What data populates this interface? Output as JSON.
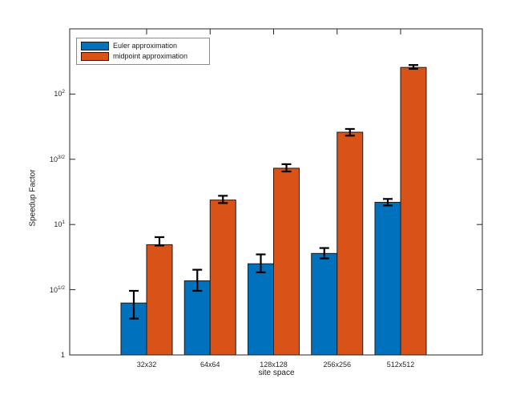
{
  "figure": {
    "background": "#ffffff",
    "axis_color": "#262626",
    "bar_edge_color": "#1a1a1a",
    "error_bar_color": "#000000",
    "legend_border_color": "#8c8c8c"
  },
  "legend": {
    "items": [
      {
        "label": "Euler approximation",
        "color": "#0072BD"
      },
      {
        "label": "midpoint approximation",
        "color": "#D95319"
      }
    ]
  },
  "chart_data": {
    "type": "bar",
    "title": "",
    "xlabel": "site space",
    "ylabel": "Speedup Factor",
    "yscale": "log",
    "ylim": [
      1,
      316.23
    ],
    "grid": false,
    "legend_position": "top-left",
    "categories": [
      "32x32",
      "64x64",
      "128x128",
      "256x256",
      "512x512"
    ],
    "yticks": [
      {
        "value": 1,
        "base": "1",
        "sup": ""
      },
      {
        "value": 3.1623,
        "base": "10",
        "sup": "1/2"
      },
      {
        "value": 10,
        "base": "10",
        "sup": "1"
      },
      {
        "value": 31.623,
        "base": "10",
        "sup": "3/2"
      },
      {
        "value": 100,
        "base": "10",
        "sup": "2"
      }
    ],
    "series": [
      {
        "name": "Euler approximation",
        "color": "#0072BD",
        "values": [
          2.5,
          3.7,
          5.0,
          6.0,
          14.8
        ],
        "err_low": [
          1.9,
          3.1,
          4.3,
          5.5,
          14.0
        ],
        "err_high": [
          3.1,
          4.5,
          5.9,
          6.6,
          15.7
        ]
      },
      {
        "name": "midpoint approximation",
        "color": "#D95319",
        "values": [
          7.0,
          15.4,
          27.0,
          51.0,
          160.0
        ],
        "err_low": [
          6.9,
          14.6,
          25.5,
          48.0,
          156.0
        ],
        "err_high": [
          8.0,
          16.6,
          29.0,
          54.0,
          167.0
        ]
      }
    ]
  }
}
